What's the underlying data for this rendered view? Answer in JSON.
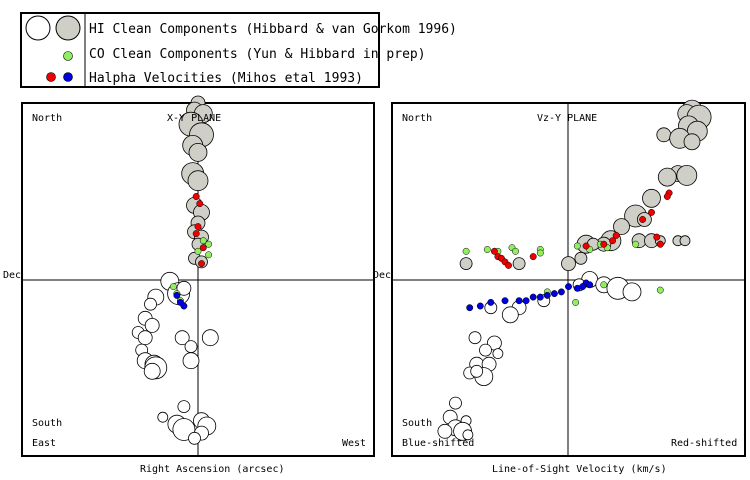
{
  "legend": {
    "items": [
      {
        "label": "HI Clean Components (Hibbard & van Gorkom 1996)",
        "colors": [
          "#ffffff",
          "#cfcfc7"
        ]
      },
      {
        "label": "CO Clean Components (Yun & Hibbard in prep)",
        "colors": [
          "#90ee60"
        ]
      },
      {
        "label": "Halpha Velocities  (Mihos etal 1993)",
        "colors": [
          "#ee0000",
          "#0000dd"
        ]
      }
    ]
  },
  "chart_data": [
    {
      "type": "scatter",
      "plane_label": "X-Y PLANE",
      "xlabel": "Right Ascension (arcsec)",
      "ylabel": "Dec",
      "corner_labels": {
        "top_left": "North",
        "bottom_left_1": "South",
        "bottom_left_2": "East",
        "bottom_right": "West"
      },
      "x_range": [
        -1,
        1
      ],
      "y_range": [
        -1,
        1
      ],
      "series": [
        {
          "type": "hi_near",
          "color": "#cfcfc7",
          "points": [
            [
              0.0,
              1.0,
              7
            ],
            [
              -0.02,
              0.96,
              8
            ],
            [
              0.03,
              0.94,
              9
            ],
            [
              -0.04,
              0.88,
              12
            ],
            [
              0.02,
              0.82,
              12
            ],
            [
              -0.03,
              0.76,
              10
            ],
            [
              0.0,
              0.72,
              9
            ],
            [
              -0.03,
              0.6,
              11
            ],
            [
              0.0,
              0.56,
              10
            ],
            [
              -0.02,
              0.42,
              8
            ],
            [
              0.02,
              0.38,
              8
            ],
            [
              0.0,
              0.32,
              7
            ],
            [
              -0.02,
              0.27,
              7
            ],
            [
              0.02,
              0.24,
              7
            ],
            [
              0.0,
              0.2,
              6
            ],
            [
              -0.02,
              0.12,
              6
            ],
            [
              0.02,
              0.1,
              6
            ]
          ]
        },
        {
          "type": "hi_far",
          "color": "#ffffff",
          "points": [
            [
              -0.16,
              -0.01,
              9
            ],
            [
              -0.11,
              -0.08,
              11
            ],
            [
              -0.08,
              -0.05,
              7
            ],
            [
              -0.24,
              -0.1,
              8
            ],
            [
              -0.27,
              -0.14,
              6
            ],
            [
              -0.3,
              -0.22,
              7
            ],
            [
              -0.26,
              -0.26,
              7
            ],
            [
              -0.34,
              -0.3,
              6
            ],
            [
              -0.3,
              -0.33,
              7
            ],
            [
              -0.32,
              -0.4,
              6
            ],
            [
              -0.3,
              -0.46,
              8
            ],
            [
              -0.25,
              -0.48,
              9
            ],
            [
              -0.24,
              -0.5,
              11
            ],
            [
              -0.26,
              -0.52,
              8
            ],
            [
              -0.09,
              -0.33,
              7
            ],
            [
              -0.04,
              -0.38,
              6
            ],
            [
              0.07,
              -0.33,
              8
            ],
            [
              -0.04,
              -0.46,
              8
            ],
            [
              -0.08,
              -0.72,
              6
            ],
            [
              -0.2,
              -0.78,
              5
            ],
            [
              -0.12,
              -0.82,
              9
            ],
            [
              -0.08,
              -0.85,
              11
            ],
            [
              0.02,
              -0.8,
              8
            ],
            [
              0.05,
              -0.83,
              9
            ],
            [
              0.02,
              -0.87,
              7
            ],
            [
              -0.02,
              -0.9,
              6
            ]
          ]
        },
        {
          "type": "co",
          "color": "#90ee60",
          "points": [
            [
              0.03,
              0.22
            ],
            [
              0.06,
              0.2
            ],
            [
              0.0,
              0.16
            ],
            [
              0.06,
              0.14
            ],
            [
              -0.14,
              -0.04
            ],
            [
              -0.1,
              -0.12
            ],
            [
              -0.12,
              -0.08
            ]
          ]
        },
        {
          "type": "halpha_red",
          "color": "#ee0000",
          "points": [
            [
              -0.01,
              0.47
            ],
            [
              0.01,
              0.43
            ],
            [
              0.0,
              0.3
            ],
            [
              -0.01,
              0.26
            ],
            [
              0.03,
              0.18
            ],
            [
              0.02,
              0.09
            ]
          ]
        },
        {
          "type": "halpha_blue",
          "color": "#0000dd",
          "points": [
            [
              -0.12,
              -0.09
            ],
            [
              -0.1,
              -0.13
            ],
            [
              -0.08,
              -0.15
            ]
          ]
        }
      ]
    },
    {
      "type": "scatter",
      "plane_label": "Vz-Y  PLANE",
      "xlabel": "Line-of-Sight Velocity (km/s)",
      "ylabel": "Dec",
      "corner_labels": {
        "top_left": "North",
        "bottom_left_1": "South",
        "bottom_left_2": "Blue-shifted",
        "bottom_right": "Red-shifted"
      },
      "x_range": [
        -1,
        1
      ],
      "y_range": [
        -1,
        1
      ],
      "series": [
        {
          "type": "hi_near",
          "color": "#cfcfc7",
          "points": [
            [
              0.7,
              0.96,
              10
            ],
            [
              0.67,
              0.94,
              9
            ],
            [
              0.74,
              0.92,
              12
            ],
            [
              0.68,
              0.87,
              10
            ],
            [
              0.73,
              0.84,
              10
            ],
            [
              0.54,
              0.82,
              7
            ],
            [
              0.63,
              0.8,
              10
            ],
            [
              0.7,
              0.78,
              8
            ],
            [
              0.62,
              0.6,
              8
            ],
            [
              0.67,
              0.59,
              10
            ],
            [
              0.56,
              0.58,
              9
            ],
            [
              0.47,
              0.46,
              9
            ],
            [
              0.38,
              0.36,
              11
            ],
            [
              0.43,
              0.34,
              7
            ],
            [
              0.3,
              0.3,
              8
            ],
            [
              0.24,
              0.22,
              10
            ],
            [
              0.2,
              0.2,
              7
            ],
            [
              0.1,
              0.2,
              9
            ],
            [
              0.14,
              0.2,
              6
            ],
            [
              0.4,
              0.22,
              7
            ],
            [
              0.47,
              0.22,
              7
            ],
            [
              0.52,
              0.22,
              5
            ],
            [
              0.62,
              0.22,
              5
            ],
            [
              0.66,
              0.22,
              5
            ],
            [
              0.07,
              0.12,
              6
            ],
            [
              -0.58,
              0.09,
              6
            ],
            [
              -0.28,
              0.09,
              6
            ],
            [
              0.0,
              0.09,
              7
            ]
          ]
        },
        {
          "type": "hi_far",
          "color": "#ffffff",
          "points": [
            [
              0.12,
              0.0,
              8
            ],
            [
              0.2,
              -0.03,
              8
            ],
            [
              0.28,
              -0.05,
              11
            ],
            [
              0.36,
              -0.07,
              9
            ],
            [
              0.06,
              -0.03,
              6
            ],
            [
              -0.14,
              -0.12,
              6
            ],
            [
              -0.28,
              -0.16,
              7
            ],
            [
              -0.33,
              -0.2,
              8
            ],
            [
              -0.44,
              -0.16,
              6
            ],
            [
              -0.53,
              -0.33,
              6
            ],
            [
              -0.42,
              -0.36,
              7
            ],
            [
              -0.47,
              -0.4,
              6
            ],
            [
              -0.4,
              -0.42,
              5
            ],
            [
              -0.52,
              -0.48,
              7
            ],
            [
              -0.45,
              -0.48,
              7
            ],
            [
              -0.56,
              -0.53,
              6
            ],
            [
              -0.48,
              -0.55,
              9
            ],
            [
              -0.52,
              -0.52,
              6
            ],
            [
              -0.64,
              -0.7,
              6
            ],
            [
              -0.67,
              -0.78,
              7
            ],
            [
              -0.58,
              -0.8,
              5
            ],
            [
              -0.64,
              -0.84,
              8
            ],
            [
              -0.6,
              -0.86,
              9
            ],
            [
              -0.7,
              -0.86,
              7
            ],
            [
              -0.57,
              -0.88,
              5
            ]
          ]
        },
        {
          "type": "co",
          "color": "#90ee60",
          "points": [
            [
              -0.58,
              0.16
            ],
            [
              -0.46,
              0.17
            ],
            [
              -0.4,
              0.16
            ],
            [
              -0.32,
              0.18
            ],
            [
              -0.3,
              0.16
            ],
            [
              -0.16,
              0.17
            ],
            [
              -0.16,
              0.15
            ],
            [
              0.05,
              0.19
            ],
            [
              0.12,
              0.17
            ],
            [
              0.18,
              0.2
            ],
            [
              0.22,
              0.18
            ],
            [
              0.38,
              0.2
            ],
            [
              0.52,
              0.2
            ],
            [
              0.2,
              -0.03
            ],
            [
              0.52,
              -0.06
            ],
            [
              0.04,
              -0.13
            ],
            [
              -0.12,
              -0.07
            ]
          ]
        },
        {
          "type": "halpha_red",
          "color": "#ee0000",
          "points": [
            [
              0.57,
              0.49
            ],
            [
              0.56,
              0.47
            ],
            [
              0.47,
              0.38
            ],
            [
              0.42,
              0.34
            ],
            [
              0.27,
              0.25
            ],
            [
              0.25,
              0.22
            ],
            [
              0.1,
              0.19
            ],
            [
              0.2,
              0.2
            ],
            [
              -0.42,
              0.16
            ],
            [
              -0.4,
              0.13
            ],
            [
              -0.38,
              0.12
            ],
            [
              -0.36,
              0.1
            ],
            [
              -0.34,
              0.08
            ],
            [
              -0.2,
              0.13
            ],
            [
              0.5,
              0.24
            ],
            [
              0.52,
              0.2
            ]
          ]
        },
        {
          "type": "halpha_blue",
          "color": "#0000dd",
          "points": [
            [
              0.0,
              -0.04
            ],
            [
              0.05,
              -0.05
            ],
            [
              0.1,
              -0.02
            ],
            [
              -0.04,
              -0.07
            ],
            [
              -0.08,
              -0.08
            ],
            [
              -0.12,
              -0.09
            ],
            [
              -0.16,
              -0.1
            ],
            [
              -0.2,
              -0.1
            ],
            [
              -0.24,
              -0.12
            ],
            [
              -0.28,
              -0.12
            ],
            [
              -0.36,
              -0.12
            ],
            [
              -0.44,
              -0.13
            ],
            [
              -0.5,
              -0.15
            ],
            [
              -0.56,
              -0.16
            ],
            [
              0.12,
              -0.03
            ],
            [
              0.08,
              -0.04
            ]
          ]
        }
      ]
    }
  ]
}
